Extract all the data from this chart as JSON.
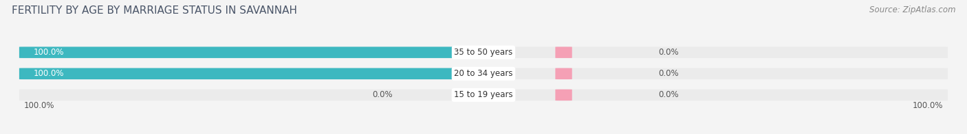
{
  "title": "FERTILITY BY AGE BY MARRIAGE STATUS IN SAVANNAH",
  "source": "Source: ZipAtlas.com",
  "categories": [
    "15 to 19 years",
    "20 to 34 years",
    "35 to 50 years"
  ],
  "married_values": [
    0.0,
    100.0,
    100.0
  ],
  "unmarried_values": [
    0.0,
    0.0,
    0.0
  ],
  "married_color": "#3db8c0",
  "unmarried_color": "#f5a0b5",
  "bar_bg_color": "#ebebeb",
  "background_color": "#f4f4f4",
  "title_color": "#4a5568",
  "source_color": "#888888",
  "label_white": "#ffffff",
  "label_dark": "#555555",
  "axis_bottom_left": "100.0%",
  "axis_bottom_right": "100.0%",
  "title_fontsize": 11,
  "source_fontsize": 8.5,
  "bar_label_fontsize": 8.5,
  "cat_label_fontsize": 8.5,
  "legend_fontsize": 9,
  "figsize": [
    14.06,
    1.96
  ],
  "dpi": 100
}
